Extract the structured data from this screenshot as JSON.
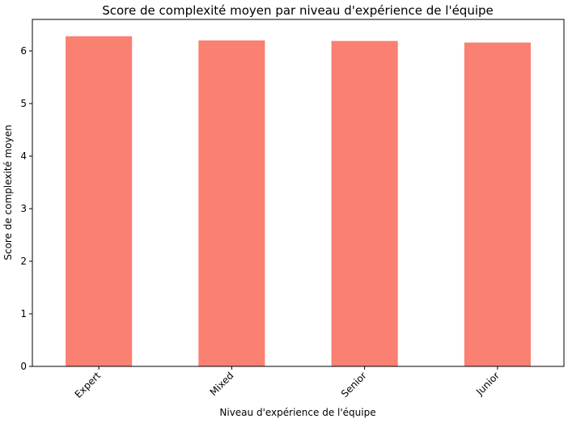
{
  "chart_data": {
    "type": "bar",
    "title": "Score de complexité moyen par niveau d'expérience de l'équipe",
    "xlabel": "Niveau d'expérience de l'équipe",
    "ylabel": "Score de complexité moyen",
    "categories": [
      "Expert",
      "Mixed",
      "Senior",
      "Junior"
    ],
    "values": [
      6.28,
      6.2,
      6.19,
      6.16
    ],
    "ylim": [
      0,
      6.6
    ],
    "yticks": [
      0,
      1,
      2,
      3,
      4,
      5,
      6
    ],
    "grid": false,
    "legend": "none",
    "bar_color": "#fa8072",
    "x_tick_rotation": 45
  }
}
